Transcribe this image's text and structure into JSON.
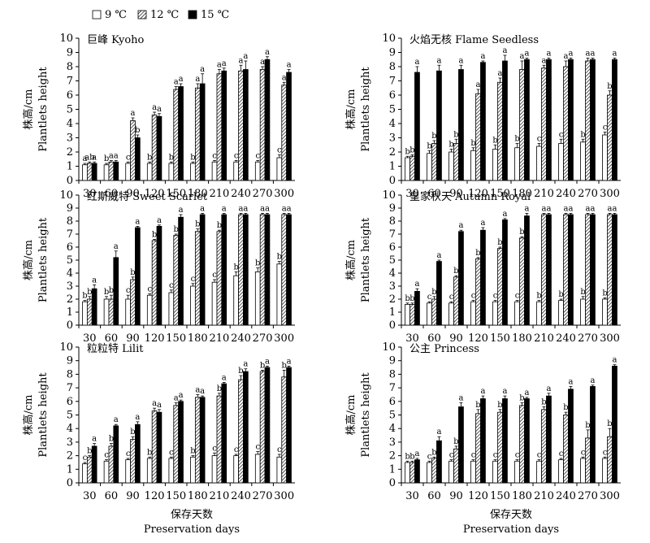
{
  "legend": {
    "items": [
      {
        "label": "9 ℃",
        "fill": "white"
      },
      {
        "label": "12 ℃",
        "fill": "hatch"
      },
      {
        "label": "15 ℃",
        "fill": "black"
      }
    ]
  },
  "axes": {
    "ylabel_cn": "株高/cm",
    "ylabel_en": "Plantlets height",
    "xlabel_cn": "保存天数",
    "xlabel_en": "Preservation days"
  },
  "colors": {
    "bar_black": "#000000",
    "bar_white": "#ffffff",
    "hatch": "#000000"
  },
  "chart_data": [
    {
      "type": "bar",
      "title": "巨峰 Kyoho",
      "categories": [
        "30",
        "60",
        "90",
        "120",
        "150",
        "180",
        "210",
        "240",
        "270",
        "300"
      ],
      "ylim": [
        0,
        10
      ],
      "series": [
        {
          "name": "9 ℃",
          "values": [
            1.1,
            1.1,
            1.2,
            1.2,
            1.2,
            1.2,
            1.3,
            1.3,
            1.3,
            1.6
          ],
          "errors": [
            0.1,
            0.1,
            0.1,
            0.1,
            0.1,
            0.1,
            0.1,
            0.1,
            0.1,
            0.2
          ],
          "letters": [
            "a",
            "b",
            "c",
            "b",
            "b",
            "b",
            "c",
            "c",
            "c",
            "c"
          ]
        },
        {
          "name": "12 ℃",
          "values": [
            1.2,
            1.3,
            4.2,
            4.6,
            6.4,
            6.5,
            7.5,
            7.7,
            7.8,
            6.7
          ],
          "errors": [
            0.1,
            0.1,
            0.2,
            0.2,
            0.2,
            0.3,
            0.3,
            0.4,
            0.2,
            0.2
          ],
          "letters": [
            "ab",
            "a",
            "a",
            "a",
            "a",
            "a",
            "a",
            "a",
            "a",
            "a"
          ]
        },
        {
          "name": "15 ℃",
          "values": [
            1.2,
            1.3,
            3.0,
            4.5,
            6.6,
            6.8,
            7.7,
            7.8,
            8.5,
            7.6
          ],
          "errors": [
            0.1,
            0.1,
            0.2,
            0.2,
            0.2,
            0.7,
            0.2,
            0.6,
            0.2,
            0.2
          ],
          "letters": [
            "a",
            "a",
            "b",
            "a",
            "a",
            "a",
            "a",
            "a",
            "a",
            "a"
          ]
        }
      ]
    },
    {
      "type": "bar",
      "title": "火焰无核 Flame Seedless",
      "categories": [
        "30",
        "60",
        "90",
        "120",
        "150",
        "180",
        "210",
        "240",
        "270",
        "300"
      ],
      "ylim": [
        0,
        10
      ],
      "series": [
        {
          "name": "9 ℃",
          "values": [
            1.6,
            1.9,
            2.0,
            2.1,
            2.2,
            2.3,
            2.4,
            2.6,
            2.7,
            3.2
          ],
          "errors": [
            0.1,
            0.2,
            0.2,
            0.2,
            0.3,
            0.3,
            0.2,
            0.3,
            0.2,
            0.2
          ],
          "letters": [
            "b",
            "b",
            "b",
            "b",
            "b",
            "b",
            "c",
            "c",
            "b",
            "c"
          ]
        },
        {
          "name": "12 ℃",
          "values": [
            1.7,
            2.6,
            2.6,
            6.1,
            6.9,
            7.8,
            7.9,
            8.0,
            8.4,
            6.0
          ],
          "errors": [
            0.1,
            0.2,
            0.3,
            0.3,
            0.3,
            0.6,
            0.2,
            0.4,
            0.2,
            0.3
          ],
          "letters": [
            "b",
            "b",
            "b",
            "a",
            "a",
            "a",
            "a",
            "a",
            "a",
            "b"
          ]
        },
        {
          "name": "15 ℃",
          "values": [
            7.6,
            7.7,
            7.8,
            8.3,
            8.4,
            8.5,
            8.5,
            8.5,
            8.5,
            8.5
          ],
          "errors": [
            0.4,
            0.4,
            0.3,
            0.1,
            0.4,
            0.1,
            0.1,
            0.1,
            0.1,
            0.1
          ],
          "letters": [
            "a",
            "a",
            "a",
            "a",
            "a",
            "a",
            "a",
            "a",
            "a",
            "a"
          ]
        }
      ]
    },
    {
      "type": "bar",
      "title": "红斯威特 Sweet Scarlet",
      "categories": [
        "30",
        "60",
        "90",
        "120",
        "150",
        "180",
        "210",
        "240",
        "270",
        "300"
      ],
      "ylim": [
        0,
        10
      ],
      "series": [
        {
          "name": "9 ℃",
          "values": [
            1.8,
            2.0,
            2.0,
            2.3,
            2.5,
            3.0,
            3.3,
            3.8,
            4.1,
            4.7
          ],
          "errors": [
            0.1,
            0.2,
            0.3,
            0.1,
            0.2,
            0.2,
            0.2,
            0.3,
            0.3,
            0.2
          ],
          "letters": [
            "b",
            "b",
            "c",
            "c",
            "c",
            "c",
            "c",
            "b",
            "b",
            "b"
          ]
        },
        {
          "name": "12 ℃",
          "values": [
            2.0,
            2.0,
            3.5,
            6.5,
            6.9,
            7.2,
            7.2,
            8.5,
            8.5,
            8.5
          ],
          "errors": [
            0.2,
            0.3,
            0.2,
            0.1,
            0.1,
            0.2,
            0.1,
            0.1,
            0.1,
            0.1
          ],
          "letters": [
            "b",
            "b",
            "b",
            "b",
            "b",
            "b",
            "b",
            "a",
            "a",
            "a"
          ]
        },
        {
          "name": "15 ℃",
          "values": [
            2.8,
            5.2,
            7.5,
            7.6,
            8.3,
            8.5,
            8.5,
            8.5,
            8.5,
            8.5
          ],
          "errors": [
            0.3,
            0.5,
            0.1,
            0.1,
            0.2,
            0.1,
            0.1,
            0.1,
            0.1,
            0.1
          ],
          "letters": [
            "a",
            "a",
            "a",
            "a",
            "a",
            "a",
            "a",
            "a",
            "a",
            "a"
          ]
        }
      ]
    },
    {
      "type": "bar",
      "title": "皇家秋天 Autumn Royal",
      "categories": [
        "30",
        "60",
        "90",
        "120",
        "150",
        "180",
        "210",
        "240",
        "270",
        "300"
      ],
      "ylim": [
        0,
        10
      ],
      "series": [
        {
          "name": "9 ℃",
          "values": [
            1.6,
            1.7,
            1.7,
            1.8,
            1.8,
            1.8,
            1.8,
            1.9,
            2.0,
            2.0
          ],
          "errors": [
            0.1,
            0.1,
            0.1,
            0.1,
            0.1,
            0.1,
            0.1,
            0.1,
            0.2,
            0.1
          ],
          "letters": [
            "b",
            "c",
            "c",
            "c",
            "c",
            "c",
            "b",
            "b",
            "b",
            "b"
          ]
        },
        {
          "name": "12 ℃",
          "values": [
            1.6,
            2.0,
            3.7,
            5.1,
            5.9,
            6.7,
            8.5,
            8.5,
            8.5,
            8.5
          ],
          "errors": [
            0.1,
            0.2,
            0.1,
            0.1,
            0.1,
            0.1,
            0.1,
            0.1,
            0.1,
            0.1
          ],
          "letters": [
            "b",
            "b",
            "b",
            "b",
            "b",
            "b",
            "a",
            "a",
            "a",
            "a"
          ]
        },
        {
          "name": "15 ℃",
          "values": [
            2.6,
            4.9,
            7.2,
            7.3,
            8.1,
            8.4,
            8.5,
            8.5,
            8.5,
            8.5
          ],
          "errors": [
            0.2,
            0.1,
            0.1,
            0.2,
            0.1,
            0.2,
            0.1,
            0.1,
            0.1,
            0.1
          ],
          "letters": [
            "a",
            "a",
            "a",
            "a",
            "a",
            "a",
            "a",
            "a",
            "a",
            "a"
          ]
        }
      ]
    },
    {
      "type": "bar",
      "title": "粒粒特 Lilit",
      "categories": [
        "30",
        "60",
        "90",
        "120",
        "150",
        "180",
        "210",
        "240",
        "270",
        "300"
      ],
      "ylim": [
        0,
        10
      ],
      "series": [
        {
          "name": "9 ℃",
          "values": [
            1.4,
            1.6,
            1.7,
            1.8,
            1.8,
            1.9,
            2.0,
            2.0,
            2.1,
            1.9
          ],
          "errors": [
            0.1,
            0.1,
            0.1,
            0.1,
            0.1,
            0.1,
            0.2,
            0.1,
            0.2,
            0.2
          ],
          "letters": [
            "c",
            "c",
            "c",
            "b",
            "c",
            "b",
            "c",
            "c",
            "c",
            "c"
          ]
        },
        {
          "name": "12 ℃",
          "values": [
            1.9,
            2.7,
            3.2,
            5.3,
            5.7,
            6.3,
            6.4,
            7.6,
            8.2,
            7.8
          ],
          "errors": [
            0.1,
            0.2,
            0.2,
            0.2,
            0.2,
            0.2,
            0.2,
            0.3,
            0.1,
            0.5
          ],
          "letters": [
            "b",
            "b",
            "b",
            "a",
            "a",
            "a",
            "b",
            "b",
            "b",
            "b"
          ]
        },
        {
          "name": "15 ℃",
          "values": [
            2.7,
            4.2,
            4.3,
            5.2,
            6.0,
            6.3,
            7.3,
            8.2,
            8.5,
            8.5
          ],
          "errors": [
            0.2,
            0.1,
            0.2,
            0.2,
            0.1,
            0.1,
            0.1,
            0.2,
            0.1,
            0.1
          ],
          "letters": [
            "a",
            "a",
            "a",
            "a",
            "a",
            "a",
            "a",
            "a",
            "a",
            "a"
          ]
        }
      ]
    },
    {
      "type": "bar",
      "title": "公主 Princess",
      "categories": [
        "30",
        "60",
        "90",
        "120",
        "150",
        "180",
        "210",
        "240",
        "270",
        "300"
      ],
      "ylim": [
        0,
        10
      ],
      "series": [
        {
          "name": "9 ℃",
          "values": [
            1.5,
            1.5,
            1.6,
            1.6,
            1.6,
            1.6,
            1.6,
            1.7,
            1.8,
            1.8
          ],
          "errors": [
            0.1,
            0.1,
            0.1,
            0.1,
            0.1,
            0.1,
            0.1,
            0.1,
            0.1,
            0.1
          ],
          "letters": [
            "b",
            "c",
            "c",
            "c",
            "c",
            "c",
            "c",
            "c",
            "c",
            "c"
          ]
        },
        {
          "name": "12 ℃",
          "values": [
            1.5,
            1.8,
            2.5,
            5.1,
            5.2,
            5.7,
            5.4,
            5.0,
            3.3,
            3.4
          ],
          "errors": [
            0.1,
            0.1,
            0.2,
            0.3,
            0.2,
            0.2,
            0.2,
            0.2,
            0.6,
            0.6
          ],
          "letters": [
            "b",
            "b",
            "b",
            "b",
            "b",
            "b",
            "b",
            "b",
            "b",
            "b"
          ]
        },
        {
          "name": "15 ℃",
          "values": [
            1.7,
            3.1,
            5.6,
            6.2,
            6.2,
            6.2,
            6.4,
            6.9,
            7.1,
            8.6
          ],
          "errors": [
            0.1,
            0.3,
            0.3,
            0.2,
            0.2,
            0.1,
            0.2,
            0.2,
            0.1,
            0.1
          ],
          "letters": [
            "a",
            "a",
            "a",
            "a",
            "a",
            "a",
            "a",
            "a",
            "a",
            "a"
          ]
        }
      ]
    }
  ]
}
